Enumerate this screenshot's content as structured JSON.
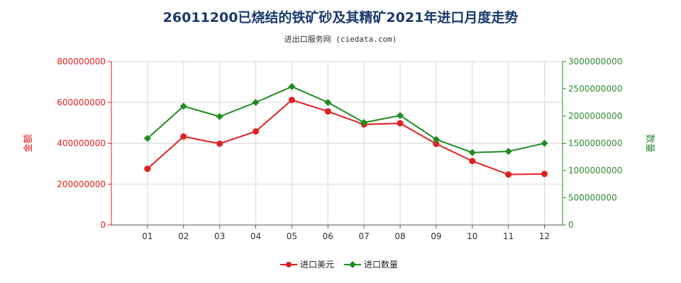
{
  "chart_data": {
    "type": "line",
    "title": "26011200已烧结的铁矿砂及其精矿2021年进口月度走势",
    "subtitle": "进出口服务网 (ciedata.com)",
    "categories": [
      "01",
      "02",
      "03",
      "04",
      "05",
      "06",
      "07",
      "08",
      "09",
      "10",
      "11",
      "12"
    ],
    "y_left": {
      "label": "金额",
      "ticks": [
        "0",
        "200000000",
        "400000000",
        "600000000",
        "800000000"
      ],
      "range": [
        0,
        800000000
      ]
    },
    "y_right": {
      "label": "数量",
      "ticks": [
        "0",
        "500000000",
        "1000000000",
        "1500000000",
        "2000000000",
        "2500000000",
        "3000000000"
      ],
      "range": [
        0,
        3000000000
      ]
    },
    "series": [
      {
        "name": "进口美元",
        "axis": "left",
        "color": "#e02020",
        "marker": "circle",
        "values": [
          275000000,
          433000000,
          398000000,
          458000000,
          612000000,
          556000000,
          492000000,
          498000000,
          397000000,
          313000000,
          247000000,
          250000000
        ]
      },
      {
        "name": "进口数量",
        "axis": "right",
        "color": "#1e8c1e",
        "marker": "diamond",
        "values": [
          1590000000,
          2180000000,
          1990000000,
          2250000000,
          2540000000,
          2250000000,
          1880000000,
          2010000000,
          1570000000,
          1330000000,
          1350000000,
          1500000000
        ]
      }
    ],
    "grid": true,
    "legend": "bottom-center"
  }
}
